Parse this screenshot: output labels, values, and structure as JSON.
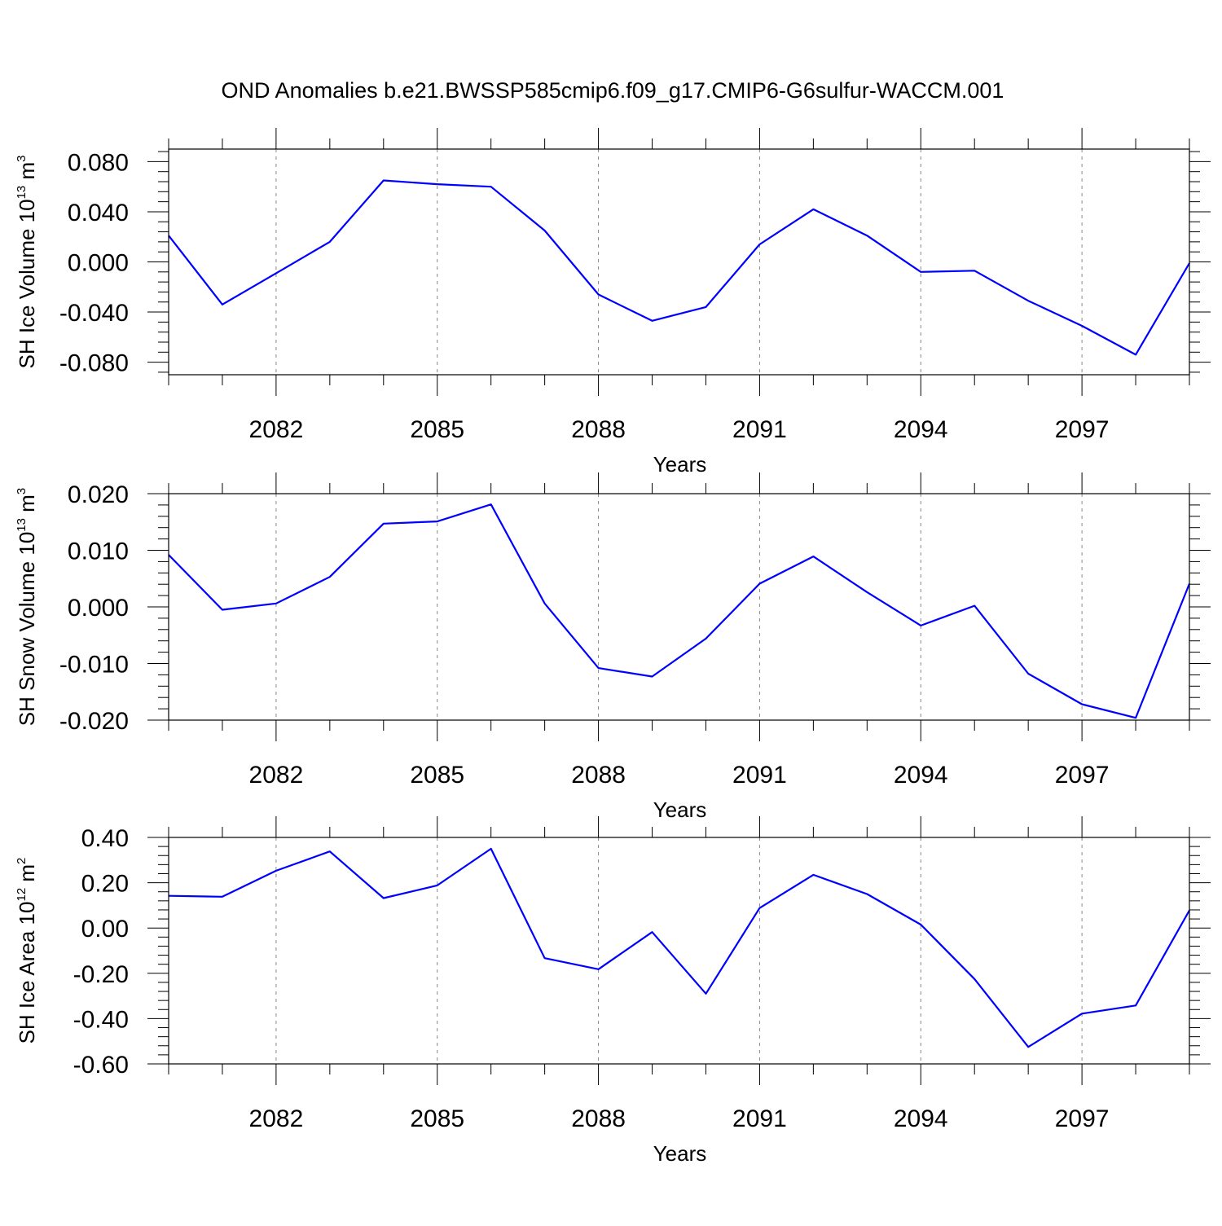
{
  "title": "OND Anomalies b.e21.BWSSP585cmip6.f09_g17.CMIP6-G6sulfur-WACCM.001",
  "chart_data": [
    {
      "type": "line",
      "xlabel": "Years",
      "ylabel": {
        "text": "SH Ice Volume 10",
        "sup": "13",
        "unit": " m",
        "unit_sup": "3"
      },
      "xlim": [
        2080,
        2099
      ],
      "ylim": [
        -0.09,
        0.09
      ],
      "yticks": [
        -0.08,
        -0.04,
        0.0,
        0.04,
        0.08
      ],
      "ytick_labels": [
        "-0.080",
        "-0.040",
        "0.000",
        "0.040",
        "0.080"
      ],
      "xticks": [
        2082,
        2085,
        2088,
        2091,
        2094,
        2097
      ],
      "xtick_labels": [
        "2082",
        "2085",
        "2088",
        "2091",
        "2094",
        "2097"
      ],
      "grid": "vertical-dashed-at-major-x",
      "series": [
        {
          "color": "#0000ff",
          "x": [
            2080,
            2081,
            2082,
            2083,
            2084,
            2085,
            2086,
            2087,
            2088,
            2089,
            2090,
            2091,
            2092,
            2093,
            2094,
            2095,
            2096,
            2097,
            2098,
            2099
          ],
          "y": [
            0.021,
            -0.034,
            -0.009,
            0.016,
            0.065,
            0.062,
            0.06,
            0.025,
            -0.026,
            -0.047,
            -0.036,
            0.014,
            0.042,
            0.021,
            -0.008,
            -0.007,
            -0.031,
            -0.051,
            -0.074,
            -0.001
          ]
        }
      ]
    },
    {
      "type": "line",
      "xlabel": "Years",
      "ylabel": {
        "text": "SH Snow Volume 10",
        "sup": "13",
        "unit": " m",
        "unit_sup": "3"
      },
      "xlim": [
        2080,
        2099
      ],
      "ylim": [
        -0.02,
        0.02
      ],
      "yticks": [
        -0.02,
        -0.01,
        0.0,
        0.01,
        0.02
      ],
      "ytick_labels": [
        "-0.020",
        "-0.010",
        "0.000",
        "0.010",
        "0.020"
      ],
      "xticks": [
        2082,
        2085,
        2088,
        2091,
        2094,
        2097
      ],
      "xtick_labels": [
        "2082",
        "2085",
        "2088",
        "2091",
        "2094",
        "2097"
      ],
      "grid": "vertical-dashed-at-major-x",
      "series": [
        {
          "color": "#0000ff",
          "x": [
            2080,
            2081,
            2082,
            2083,
            2084,
            2085,
            2086,
            2087,
            2088,
            2089,
            2090,
            2091,
            2092,
            2093,
            2094,
            2095,
            2096,
            2097,
            2098,
            2099
          ],
          "y": [
            0.0092,
            -0.0005,
            0.0006,
            0.0053,
            0.0147,
            0.0151,
            0.0181,
            0.0006,
            -0.0108,
            -0.0123,
            -0.0056,
            0.0041,
            0.0089,
            0.0026,
            -0.0033,
            0.0002,
            -0.0118,
            -0.0172,
            -0.0196,
            0.0041
          ]
        }
      ]
    },
    {
      "type": "line",
      "xlabel": "Years",
      "ylabel": {
        "text": "SH Ice Area 10",
        "sup": "12",
        "unit": " m",
        "unit_sup": "2"
      },
      "xlim": [
        2080,
        2099
      ],
      "ylim": [
        -0.6,
        0.4
      ],
      "yticks": [
        -0.6,
        -0.4,
        -0.2,
        0.0,
        0.2,
        0.4
      ],
      "ytick_labels": [
        "-0.60",
        "-0.40",
        "-0.20",
        "0.00",
        "0.20",
        "0.40"
      ],
      "xticks": [
        2082,
        2085,
        2088,
        2091,
        2094,
        2097
      ],
      "xtick_labels": [
        "2082",
        "2085",
        "2088",
        "2091",
        "2094",
        "2097"
      ],
      "grid": "vertical-dashed-at-major-x",
      "series": [
        {
          "color": "#0000ff",
          "x": [
            2080,
            2081,
            2082,
            2083,
            2084,
            2085,
            2086,
            2087,
            2088,
            2089,
            2090,
            2091,
            2092,
            2093,
            2094,
            2095,
            2096,
            2097,
            2098,
            2099
          ],
          "y": [
            0.142,
            0.138,
            0.253,
            0.338,
            0.132,
            0.188,
            0.35,
            -0.133,
            -0.182,
            -0.018,
            -0.29,
            0.088,
            0.235,
            0.15,
            0.015,
            -0.225,
            -0.525,
            -0.378,
            -0.342,
            0.078
          ]
        }
      ]
    }
  ]
}
